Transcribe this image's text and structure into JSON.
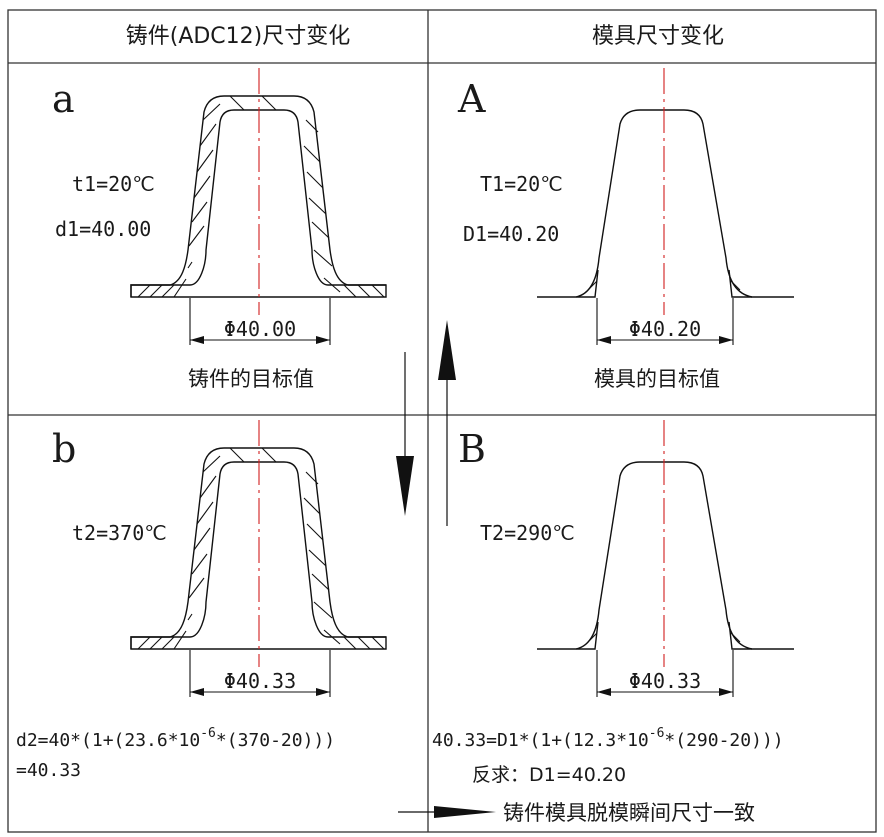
{
  "header": {
    "casting_title": "铸件(ADC12)尺寸变化",
    "mold_title": "模具尺寸变化"
  },
  "panel_a": {
    "label": "a",
    "temp": "t1=20℃",
    "size": "d1=40.00",
    "dimension": "Φ40.00",
    "caption": "铸件的目标值"
  },
  "panel_A": {
    "label": "A",
    "temp": "T1=20℃",
    "size": "D1=40.20",
    "dimension": "Φ40.20",
    "caption": "模具的目标值"
  },
  "panel_b": {
    "label": "b",
    "temp": "t2=370℃",
    "dimension": "Φ40.33",
    "formula_pre": "d2=40*(1+(23.6*10",
    "formula_exp": "-6",
    "formula_post": "*(370-20)))",
    "result": "=40.33"
  },
  "panel_B": {
    "label": "B",
    "temp": "T2=290℃",
    "dimension": "Φ40.33",
    "formula_pre": "40.33=D1*(1+(12.3*10",
    "formula_exp": "-6",
    "formula_post": "*(290-20)))",
    "solve": "反求：D1=40.20"
  },
  "footer": {
    "note": "铸件模具脱模瞬间尺寸一致"
  }
}
